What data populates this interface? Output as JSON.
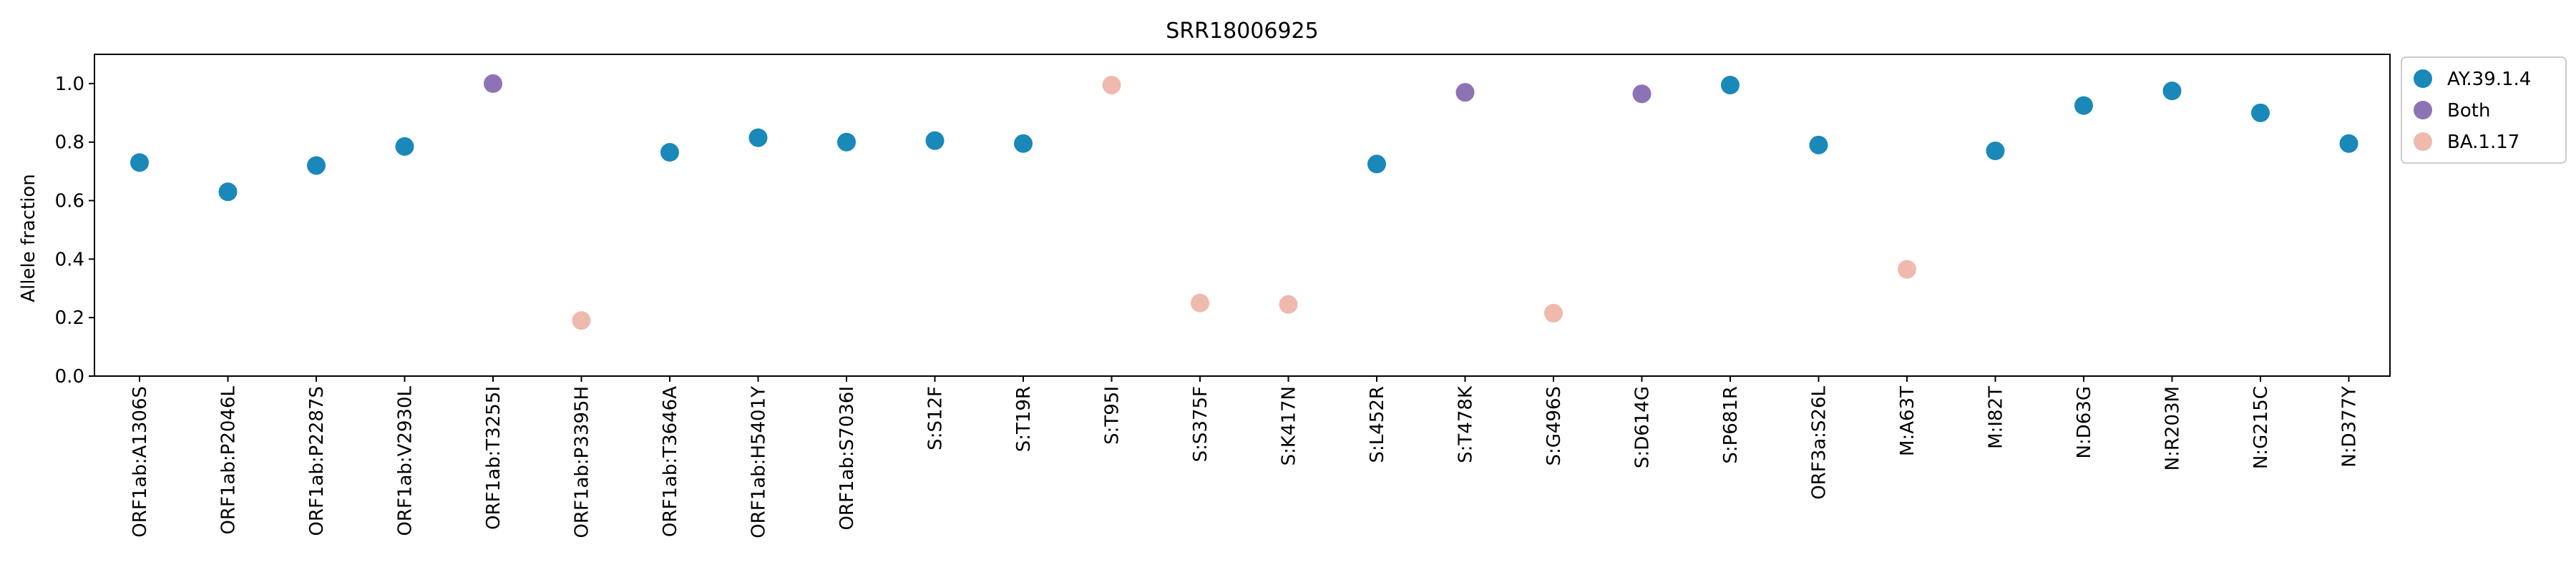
{
  "chart_data": {
    "type": "scatter",
    "title": "SRR18006925",
    "xlabel": "",
    "ylabel": "Allele fraction",
    "ylim": [
      0,
      1.1
    ],
    "yticks": [
      "0.0",
      "0.2",
      "0.4",
      "0.6",
      "0.8",
      "1.0"
    ],
    "grid": false,
    "legend_position": "outside-top-right",
    "categories": [
      "ORF1ab:A1306S",
      "ORF1ab:P2046L",
      "ORF1ab:P2287S",
      "ORF1ab:V2930L",
      "ORF1ab:T3255I",
      "ORF1ab:P3395H",
      "ORF1ab:T3646A",
      "ORF1ab:H5401Y",
      "ORF1ab:S7036I",
      "S:S12F",
      "S:T19R",
      "S:T95I",
      "S:S375F",
      "S:K417N",
      "S:L452R",
      "S:T478K",
      "S:G496S",
      "S:D614G",
      "S:P681R",
      "ORF3a:S26L",
      "M:A63T",
      "M:I82T",
      "N:D63G",
      "N:R203M",
      "N:G215C",
      "N:D377Y"
    ],
    "values": [
      0.73,
      0.63,
      0.72,
      0.785,
      1.0,
      0.19,
      0.765,
      0.815,
      0.8,
      0.805,
      0.795,
      0.995,
      0.25,
      0.245,
      0.725,
      0.97,
      0.215,
      0.965,
      0.995,
      0.79,
      0.365,
      0.77,
      0.925,
      0.975,
      0.9,
      0.795
    ],
    "groups": [
      "AY.39.1.4",
      "AY.39.1.4",
      "AY.39.1.4",
      "AY.39.1.4",
      "Both",
      "BA.1.17",
      "AY.39.1.4",
      "AY.39.1.4",
      "AY.39.1.4",
      "AY.39.1.4",
      "AY.39.1.4",
      "BA.1.17",
      "BA.1.17",
      "BA.1.17",
      "AY.39.1.4",
      "Both",
      "BA.1.17",
      "Both",
      "AY.39.1.4",
      "AY.39.1.4",
      "BA.1.17",
      "AY.39.1.4",
      "AY.39.1.4",
      "AY.39.1.4",
      "AY.39.1.4",
      "AY.39.1.4"
    ],
    "legend": [
      {
        "name": "AY.39.1.4",
        "color": "#1a88b8"
      },
      {
        "name": "Both",
        "color": "#8e72b6"
      },
      {
        "name": "BA.1.17",
        "color": "#efb9ad"
      }
    ]
  }
}
